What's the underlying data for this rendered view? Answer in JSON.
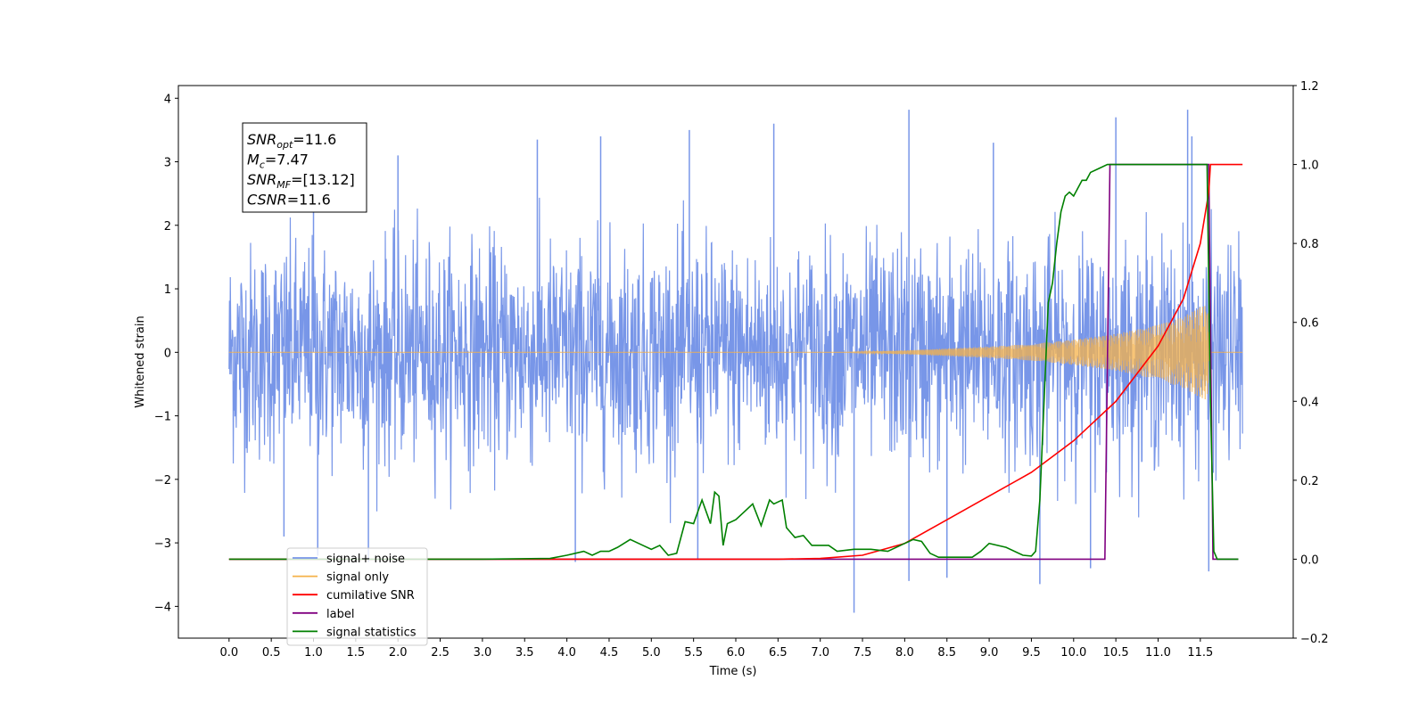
{
  "chart_data": {
    "type": "line",
    "title": "",
    "xlabel": "Time (s)",
    "ylabel": "Whitened strain",
    "y2label": "",
    "xlim": [
      -0.6,
      12.6
    ],
    "ylim": [
      -4.5,
      4.2
    ],
    "y2lim": [
      -0.2,
      1.2
    ],
    "x_ticks": [
      0.0,
      0.5,
      1.0,
      1.5,
      2.0,
      2.5,
      3.0,
      3.5,
      4.0,
      4.5,
      5.0,
      5.5,
      6.0,
      6.5,
      7.0,
      7.5,
      8.0,
      8.5,
      9.0,
      9.5,
      10.0,
      10.5,
      11.0,
      11.5
    ],
    "x_tick_labels": [
      "0.0",
      "0.5",
      "1.0",
      "1.5",
      "2.0",
      "2.5",
      "3.0",
      "3.5",
      "4.0",
      "4.5",
      "5.0",
      "5.5",
      "6.0",
      "6.5",
      "7.0",
      "7.5",
      "8.0",
      "8.5",
      "9.0",
      "9.5",
      "10.0",
      "10.5",
      "11.0",
      "11.5"
    ],
    "y_ticks": [
      4,
      3,
      2,
      1,
      0,
      -1,
      -2,
      -3,
      -4
    ],
    "y_tick_labels": [
      "4",
      "3",
      "2",
      "1",
      "0",
      "−1",
      "−2",
      "−3",
      "−4"
    ],
    "y2_ticks": [
      1.2,
      1.0,
      0.8,
      0.6,
      0.4,
      0.2,
      0.0,
      -0.2
    ],
    "y2_tick_labels": [
      "1.2",
      "1.0",
      "0.8",
      "0.6",
      "0.4",
      "0.2",
      "0.0",
      "−0.2"
    ],
    "grid": false,
    "legend_position": "bottom-left",
    "annotation": {
      "lines": [
        {
          "base": "SNR",
          "sub": "opt",
          "rest": "=11.6"
        },
        {
          "base": "M",
          "sub": "c",
          "rest": "=7.47"
        },
        {
          "base": "SNR",
          "sub": "MF",
          "rest": "=[13.12]"
        },
        {
          "base": "CSNR",
          "sub": "",
          "rest": "=11.6"
        }
      ]
    },
    "series": [
      {
        "name": "signal+ noise",
        "axis": "left",
        "color": "#7896e8",
        "description": "white noise band, roughly ±2 to ±3.8, from 0 to 12 s",
        "x_range": [
          0.0,
          12.0
        ],
        "envelope_abs": 2.2,
        "spike_max": [
          [
            1.0,
            3.2
          ],
          [
            2.0,
            3.1
          ],
          [
            3.65,
            3.35
          ],
          [
            4.4,
            3.4
          ],
          [
            5.45,
            3.5
          ],
          [
            6.45,
            3.6
          ],
          [
            8.05,
            3.82
          ],
          [
            9.05,
            3.3
          ],
          [
            10.5,
            3.7
          ],
          [
            11.35,
            3.82
          ],
          [
            11.4,
            3.4
          ]
        ],
        "spike_min": [
          [
            0.65,
            -2.9
          ],
          [
            1.05,
            -3.2
          ],
          [
            1.65,
            -3.3
          ],
          [
            4.1,
            -3.3
          ],
          [
            5.55,
            -3.25
          ],
          [
            7.4,
            -4.1
          ],
          [
            8.05,
            -3.6
          ],
          [
            8.5,
            -3.55
          ],
          [
            9.6,
            -3.65
          ],
          [
            10.2,
            -3.4
          ],
          [
            11.6,
            -3.45
          ]
        ]
      },
      {
        "name": "signal only",
        "axis": "left",
        "color": "#f5b14a",
        "description": "chirp waveform: flat until ~7.3 s, then amplitude grows to ~0.75 at 11.6 s, then zero",
        "envelope": [
          [
            0.0,
            0.0
          ],
          [
            7.3,
            0.0
          ],
          [
            8.0,
            0.03
          ],
          [
            8.5,
            0.06
          ],
          [
            9.0,
            0.09
          ],
          [
            9.5,
            0.13
          ],
          [
            10.0,
            0.2
          ],
          [
            10.5,
            0.29
          ],
          [
            11.0,
            0.43
          ],
          [
            11.3,
            0.56
          ],
          [
            11.5,
            0.72
          ],
          [
            11.58,
            0.76
          ],
          [
            11.62,
            0.0
          ],
          [
            12.0,
            0.0
          ]
        ]
      },
      {
        "name": "cumilative SNR",
        "axis": "right",
        "color": "#ff0000",
        "x": [
          0.0,
          6.5,
          7.0,
          7.5,
          8.0,
          8.5,
          9.0,
          9.5,
          10.0,
          10.5,
          11.0,
          11.3,
          11.5,
          11.6,
          11.62,
          12.0
        ],
        "y": [
          0.0,
          0.0,
          0.002,
          0.01,
          0.04,
          0.1,
          0.16,
          0.22,
          0.3,
          0.4,
          0.54,
          0.66,
          0.8,
          0.93,
          1.0,
          1.0
        ]
      },
      {
        "name": "label",
        "axis": "right",
        "color": "#800080",
        "x": [
          0.0,
          10.37,
          10.43,
          11.6,
          11.65,
          11.95
        ],
        "y": [
          0.0,
          0.0,
          1.0,
          1.0,
          0.0,
          0.0
        ]
      },
      {
        "name": "signal statistics",
        "axis": "right",
        "color": "#008000",
        "x": [
          0.0,
          3.0,
          3.8,
          4.0,
          4.1,
          4.2,
          4.3,
          4.4,
          4.5,
          4.6,
          4.75,
          4.9,
          5.0,
          5.1,
          5.2,
          5.3,
          5.4,
          5.5,
          5.6,
          5.7,
          5.75,
          5.8,
          5.85,
          5.9,
          6.0,
          6.1,
          6.2,
          6.3,
          6.4,
          6.45,
          6.5,
          6.55,
          6.6,
          6.7,
          6.8,
          6.9,
          7.0,
          7.1,
          7.2,
          7.4,
          7.6,
          7.8,
          8.0,
          8.1,
          8.2,
          8.3,
          8.4,
          8.6,
          8.8,
          8.9,
          9.0,
          9.2,
          9.4,
          9.5,
          9.55,
          9.6,
          9.65,
          9.7,
          9.75,
          9.8,
          9.85,
          9.9,
          9.95,
          10.0,
          10.05,
          10.1,
          10.15,
          10.2,
          10.3,
          10.4,
          10.5,
          10.6,
          11.0,
          11.5,
          11.58,
          11.62,
          11.66,
          11.7,
          11.75,
          11.8,
          11.95
        ],
        "y": [
          0.0,
          0.0,
          0.002,
          0.01,
          0.015,
          0.02,
          0.01,
          0.02,
          0.02,
          0.03,
          0.05,
          0.035,
          0.025,
          0.035,
          0.01,
          0.015,
          0.095,
          0.09,
          0.15,
          0.09,
          0.17,
          0.16,
          0.035,
          0.09,
          0.1,
          0.12,
          0.14,
          0.085,
          0.15,
          0.14,
          0.145,
          0.15,
          0.08,
          0.055,
          0.06,
          0.035,
          0.035,
          0.035,
          0.02,
          0.025,
          0.025,
          0.02,
          0.04,
          0.05,
          0.045,
          0.015,
          0.005,
          0.005,
          0.005,
          0.02,
          0.04,
          0.03,
          0.01,
          0.008,
          0.02,
          0.15,
          0.4,
          0.65,
          0.7,
          0.8,
          0.88,
          0.92,
          0.93,
          0.92,
          0.94,
          0.96,
          0.96,
          0.98,
          0.99,
          1.0,
          1.0,
          1.0,
          1.0,
          1.0,
          1.0,
          0.4,
          0.02,
          0.0,
          0.0,
          0.0,
          0.0
        ]
      }
    ]
  }
}
